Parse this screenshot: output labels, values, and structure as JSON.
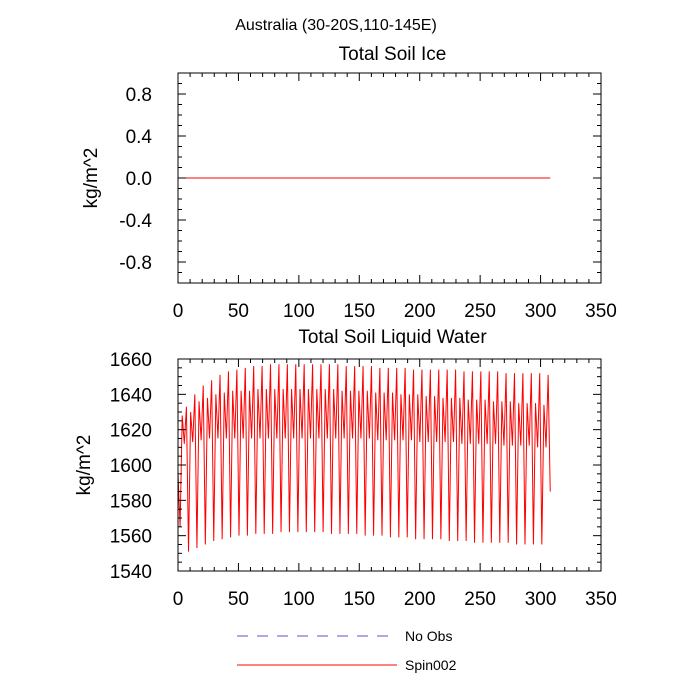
{
  "figure": {
    "title": "Australia (30-20S,110-145E)"
  },
  "chart_data": [
    {
      "type": "line",
      "title": "Total Soil Ice",
      "xlabel": "",
      "ylabel": "kg/m^2",
      "xlim": [
        0,
        350
      ],
      "ylim": [
        -1.0,
        1.0
      ],
      "xticks": [
        0,
        50,
        100,
        150,
        200,
        250,
        300,
        350
      ],
      "xtick_labels": [
        "0",
        "50",
        "100",
        "150",
        "200",
        "250",
        "300",
        "350"
      ],
      "yticks": [
        -0.8,
        -0.4,
        0.0,
        0.4,
        0.8
      ],
      "ytick_labels": [
        "-0.8",
        "-0.4",
        "0.0",
        "0.4",
        "0.8"
      ],
      "series": [
        {
          "name": "Spin002",
          "color": "#ff0000",
          "x": [
            0,
            308
          ],
          "values": [
            0.0,
            0.0
          ]
        }
      ]
    },
    {
      "type": "line",
      "title": "Total Soil Liquid Water",
      "xlabel": "",
      "ylabel": "kg/m^2",
      "xlim": [
        0,
        350
      ],
      "ylim": [
        1540,
        1660
      ],
      "xticks": [
        0,
        50,
        100,
        150,
        200,
        250,
        300,
        350
      ],
      "xtick_labels": [
        "0",
        "50",
        "100",
        "150",
        "200",
        "250",
        "300",
        "350"
      ],
      "yticks": [
        1540,
        1560,
        1580,
        1600,
        1620,
        1640,
        1660
      ],
      "ytick_labels": [
        "1540",
        "1560",
        "1580",
        "1600",
        "1620",
        "1640",
        "1660"
      ],
      "series": [
        {
          "name": "Spin002",
          "color": "#ff0000",
          "values": [
            1595,
            1565,
            1628,
            1612,
            1633,
            1551,
            1630,
            1613,
            1640,
            1553,
            1636,
            1614,
            1645,
            1555,
            1638,
            1615,
            1648,
            1557,
            1640,
            1615,
            1651,
            1558,
            1641,
            1615,
            1653,
            1559,
            1642,
            1615,
            1654,
            1560,
            1642,
            1615,
            1655,
            1560,
            1642,
            1615,
            1656,
            1561,
            1643,
            1615,
            1656,
            1561,
            1643,
            1615,
            1657,
            1561,
            1643,
            1615,
            1657,
            1562,
            1643,
            1615,
            1657,
            1562,
            1643,
            1615,
            1657,
            1562,
            1643,
            1615,
            1657,
            1562,
            1643,
            1615,
            1657,
            1562,
            1643,
            1615,
            1657,
            1562,
            1643,
            1615,
            1657,
            1561,
            1643,
            1615,
            1657,
            1561,
            1642,
            1615,
            1656,
            1561,
            1642,
            1615,
            1656,
            1561,
            1642,
            1615,
            1656,
            1560,
            1642,
            1615,
            1656,
            1560,
            1641,
            1614,
            1655,
            1560,
            1641,
            1614,
            1655,
            1559,
            1641,
            1614,
            1655,
            1559,
            1640,
            1614,
            1655,
            1559,
            1640,
            1614,
            1654,
            1558,
            1640,
            1613,
            1654,
            1558,
            1639,
            1613,
            1654,
            1558,
            1639,
            1613,
            1654,
            1558,
            1638,
            1613,
            1654,
            1557,
            1638,
            1613,
            1654,
            1557,
            1638,
            1612,
            1653,
            1557,
            1637,
            1612,
            1653,
            1556,
            1637,
            1612,
            1653,
            1556,
            1637,
            1612,
            1653,
            1556,
            1636,
            1612,
            1653,
            1556,
            1636,
            1611,
            1652,
            1556,
            1636,
            1611,
            1652,
            1555,
            1635,
            1611,
            1652,
            1555,
            1635,
            1611,
            1652,
            1555,
            1635,
            1610,
            1652,
            1555,
            1634,
            1610,
            1651,
            1585
          ]
        }
      ]
    }
  ],
  "legend": {
    "placement": "bottom-center",
    "entries": [
      {
        "label": "No Obs",
        "color": "#5555cc",
        "style": "dashed"
      },
      {
        "label": "Spin002",
        "color": "#ff0000",
        "style": "solid"
      }
    ]
  }
}
